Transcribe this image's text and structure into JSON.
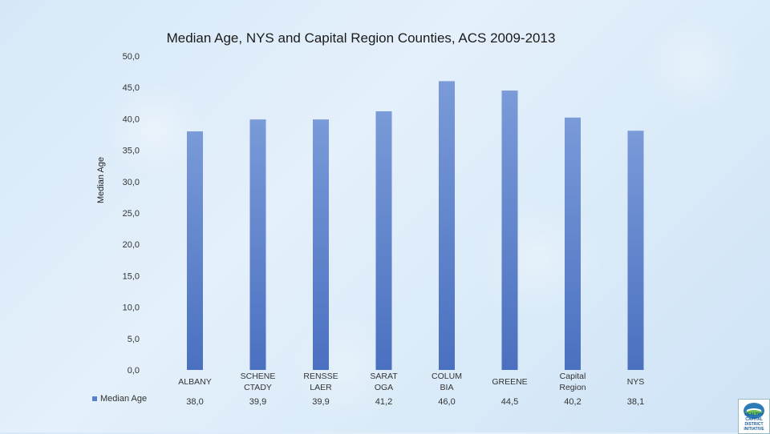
{
  "chart_data": {
    "type": "bar",
    "title": "Median Age, NYS and Capital Region Counties, ACS 2009-2013",
    "xlabel": "",
    "ylabel": "Median Age",
    "ylim": [
      0,
      50
    ],
    "yticks": [
      "0,0",
      "5,0",
      "10,0",
      "15,0",
      "20,0",
      "25,0",
      "30,0",
      "35,0",
      "40,0",
      "45,0",
      "50,0"
    ],
    "categories": [
      [
        "ALBANY"
      ],
      [
        "SCHENE",
        "CTADY"
      ],
      [
        "RENSSE",
        "LAER"
      ],
      [
        "SARAT",
        "OGA"
      ],
      [
        "COLUM",
        "BIA"
      ],
      [
        "GREENE"
      ],
      [
        "Capital",
        "Region"
      ],
      [
        "NYS"
      ]
    ],
    "series": [
      {
        "name": "Median Age",
        "values": [
          38.0,
          39.9,
          39.9,
          41.2,
          46.0,
          44.5,
          40.2,
          38.1
        ],
        "labels": [
          "38,0",
          "39,9",
          "39,9",
          "41,2",
          "46,0",
          "44,5",
          "40,2",
          "38,1"
        ]
      }
    ],
    "legend": "bottom-left data table",
    "colors": {
      "bar_top": "#7a9ad8",
      "bar_bottom": "#4a70c0",
      "swatch": "#5b7fcf"
    }
  },
  "logo": {
    "icon": "handshake-logo-icon",
    "text": "HEALTHY CAPITAL DISTRICT INITIATIVE"
  }
}
